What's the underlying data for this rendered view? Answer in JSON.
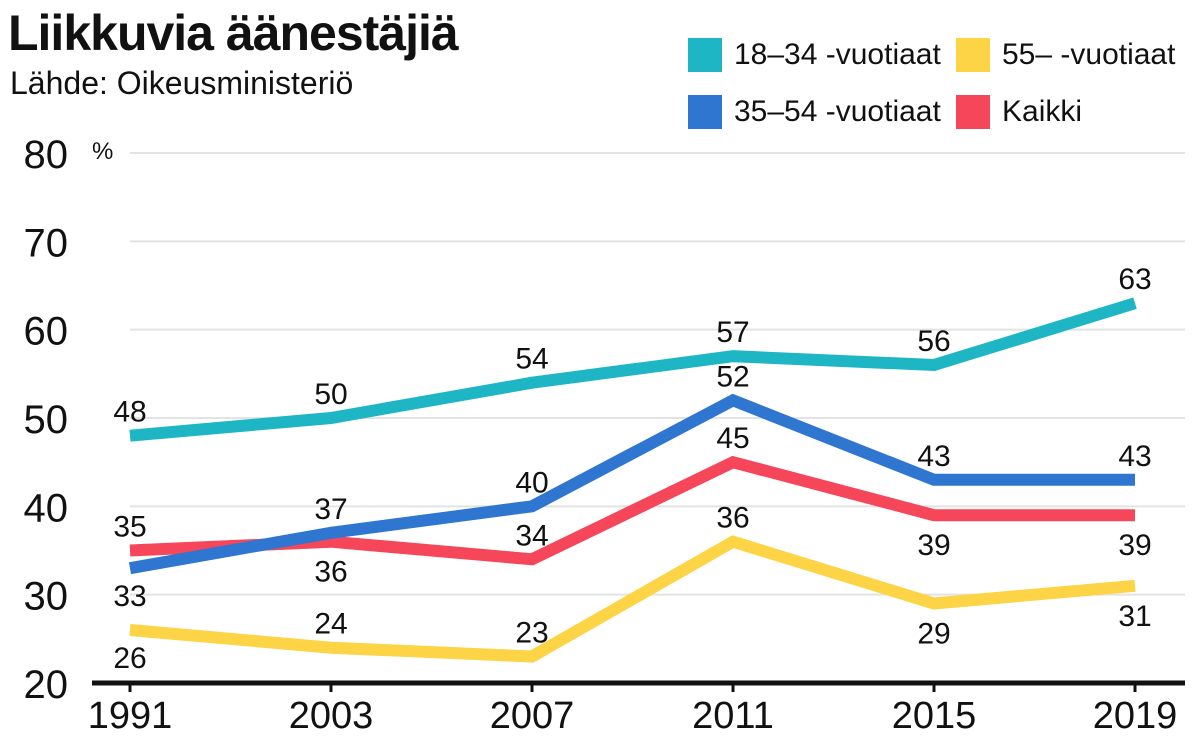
{
  "title": "Liikkuvia äänestäjiä",
  "subtitle": "Lähde: Oikeusministeriö",
  "colors": {
    "series1": "#1eb6c5",
    "series2": "#2e76cf",
    "series3": "#fcd445",
    "series4": "#f5465a",
    "grid": "#e3e3e3",
    "axis": "#111111"
  },
  "chart_data": {
    "type": "line",
    "unit": "%",
    "x": [
      "1991",
      "2003",
      "2007",
      "2011",
      "2015",
      "2019"
    ],
    "ylim": [
      20,
      80
    ],
    "yticks": [
      "20",
      "30",
      "40",
      "50",
      "60",
      "70",
      "80"
    ],
    "grid": true,
    "legend_position": "top-right",
    "series": [
      {
        "name": "18–34 -vuotiaat",
        "color": "#1eb6c5",
        "values": [
          48,
          50,
          54,
          57,
          56,
          63
        ]
      },
      {
        "name": "35–54 -vuotiaat",
        "color": "#2e76cf",
        "values": [
          33,
          37,
          40,
          52,
          43,
          43
        ]
      },
      {
        "name": "55– -vuotiaat",
        "color": "#fcd445",
        "values": [
          26,
          24,
          23,
          36,
          29,
          31
        ]
      },
      {
        "name": "Kaikki",
        "color": "#f5465a",
        "values": [
          35,
          36,
          34,
          45,
          39,
          39
        ]
      }
    ],
    "labels": {
      "series1": [
        "48",
        "50",
        "54",
        "57",
        "56",
        "63"
      ],
      "series2": [
        "33",
        "37",
        "40",
        "52",
        "43",
        "43"
      ],
      "series3": [
        "26",
        "24",
        "23",
        "36",
        "29",
        "31"
      ],
      "series4": [
        "35",
        "36",
        "34",
        "45",
        "39",
        "39"
      ]
    }
  }
}
